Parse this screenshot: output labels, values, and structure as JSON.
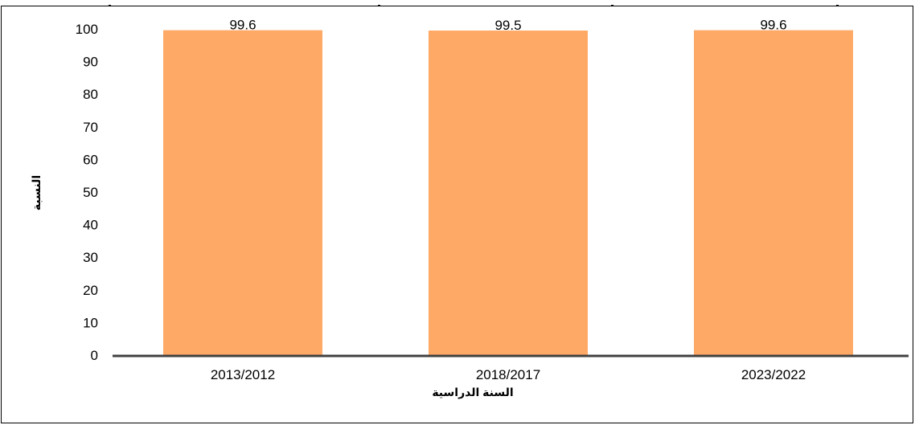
{
  "chart_data": {
    "type": "bar",
    "categories": [
      "2013/2012",
      "2018/2017",
      "2023/2022"
    ],
    "values": [
      99.6,
      99.5,
      99.6
    ],
    "data_labels": [
      "99.6",
      "99.5",
      "99.6"
    ],
    "xlabel": "السنة الدراسية",
    "ylabel": "النسبة",
    "ylim": [
      0,
      100
    ],
    "yticks": [
      0,
      10,
      20,
      30,
      40,
      50,
      60,
      70,
      80,
      90,
      100
    ],
    "grid": false,
    "legend": "none",
    "bar_color": "#FFA966",
    "axis_color": "#404040"
  }
}
